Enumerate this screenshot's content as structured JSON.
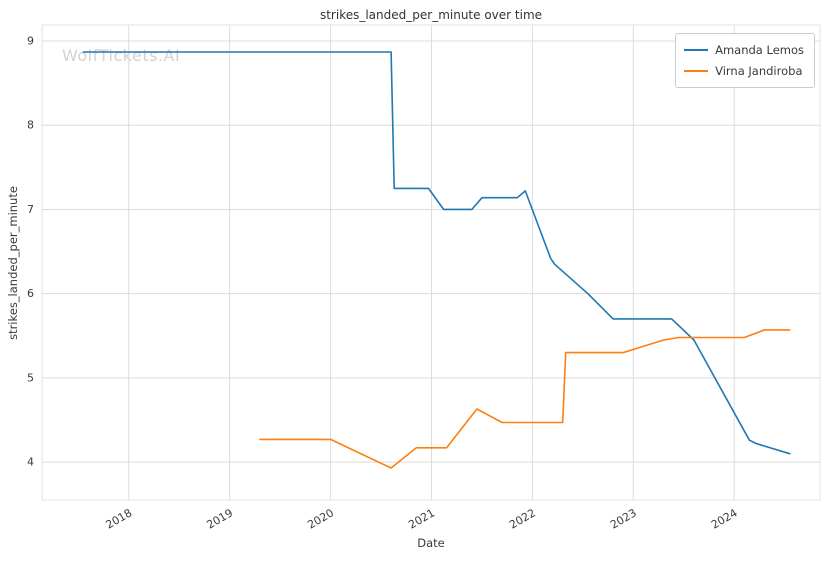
{
  "watermark": "WolfTickets.AI",
  "chart_data": {
    "type": "line",
    "title": "strikes_landed_per_minute over time",
    "xlabel": "Date",
    "ylabel": "strikes_landed_per_minute",
    "xlim": [
      2017.14,
      2024.85
    ],
    "ylim": [
      3.55,
      9.19
    ],
    "xticks": [
      2018,
      2019,
      2020,
      2021,
      2022,
      2023,
      2024
    ],
    "yticks": [
      4,
      5,
      6,
      7,
      8,
      9
    ],
    "grid": true,
    "legend_position": "upper right",
    "colors": {
      "grid": "#dcdcdc",
      "spine": "#e3e3e3",
      "text": "#3a3a3a",
      "watermark": "#d2d2d2",
      "series_blue": "#1f77b4",
      "series_orange": "#ff7f0e"
    },
    "series": [
      {
        "name": "Amanda Lemos",
        "color": "#1f77b4",
        "points": [
          [
            2017.55,
            8.87
          ],
          [
            2020.6,
            8.87
          ],
          [
            2020.63,
            7.25
          ],
          [
            2020.97,
            7.25
          ],
          [
            2021.12,
            7.0
          ],
          [
            2021.4,
            7.0
          ],
          [
            2021.5,
            7.14
          ],
          [
            2021.85,
            7.14
          ],
          [
            2021.93,
            7.22
          ],
          [
            2022.18,
            6.42
          ],
          [
            2022.22,
            6.35
          ],
          [
            2022.55,
            6.0
          ],
          [
            2022.8,
            5.7
          ],
          [
            2023.38,
            5.7
          ],
          [
            2023.6,
            5.45
          ],
          [
            2024.15,
            4.26
          ],
          [
            2024.22,
            4.22
          ],
          [
            2024.55,
            4.1
          ]
        ]
      },
      {
        "name": "Virna Jandiroba",
        "color": "#ff7f0e",
        "points": [
          [
            2019.3,
            4.27
          ],
          [
            2020.0,
            4.27
          ],
          [
            2020.6,
            3.93
          ],
          [
            2020.85,
            4.17
          ],
          [
            2021.15,
            4.17
          ],
          [
            2021.45,
            4.63
          ],
          [
            2021.7,
            4.47
          ],
          [
            2022.3,
            4.47
          ],
          [
            2022.33,
            5.3
          ],
          [
            2022.9,
            5.3
          ],
          [
            2023.3,
            5.45
          ],
          [
            2023.45,
            5.48
          ],
          [
            2024.1,
            5.48
          ],
          [
            2024.3,
            5.57
          ],
          [
            2024.55,
            5.57
          ]
        ]
      }
    ]
  }
}
